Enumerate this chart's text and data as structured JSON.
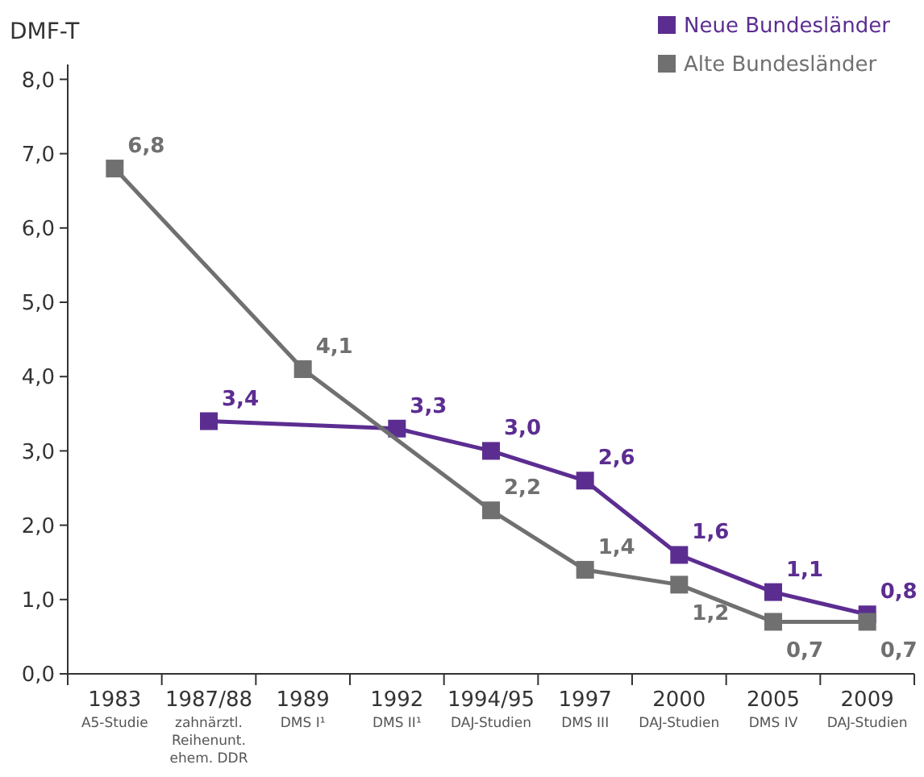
{
  "chart_data": {
    "type": "line",
    "ylabel": "DMF-T",
    "categories": [
      "1983\nA5-Studie",
      "1987/88\nzahnärztl.\nReihenunt.\nehem. DDR",
      "1989\nDMS I¹",
      "1992\nDMS II¹",
      "1994/95\nDAJ-Studien",
      "1997\nDMS III",
      "2000\nDAJ-Studien",
      "2005\nDMS IV",
      "2009\nDAJ-Studien"
    ],
    "series": [
      {
        "name": "Neue Bundesländer",
        "color": "#5c2d91",
        "values": [
          null,
          3.4,
          null,
          3.3,
          3.0,
          2.6,
          1.6,
          1.1,
          0.8
        ],
        "value_labels": [
          null,
          "3,4",
          null,
          "3,3",
          "3,0",
          "2,6",
          "1,6",
          "1,1",
          "0,8"
        ]
      },
      {
        "name": "Alte Bundesländer",
        "color": "#707070",
        "values": [
          6.8,
          null,
          4.1,
          null,
          2.2,
          1.4,
          1.2,
          0.7,
          0.7
        ],
        "value_labels": [
          "6,8",
          null,
          "4,1",
          null,
          "2,2",
          "1,4",
          "1,2",
          "0,7",
          "0,7"
        ]
      }
    ],
    "ylim": [
      0,
      8.2
    ],
    "yticks": [
      {
        "value": 0,
        "label": "0,0"
      },
      {
        "value": 1,
        "label": "1,0"
      },
      {
        "value": 2,
        "label": "2,0"
      },
      {
        "value": 3,
        "label": "3,0"
      },
      {
        "value": 4,
        "label": "4,0"
      },
      {
        "value": 5,
        "label": "5,0"
      },
      {
        "value": 6,
        "label": "6,0"
      },
      {
        "value": 7,
        "label": "7,0"
      },
      {
        "value": 8,
        "label": "8,0"
      }
    ],
    "grid": false,
    "legend": "top right",
    "marker": "square",
    "line_style": "solid"
  }
}
